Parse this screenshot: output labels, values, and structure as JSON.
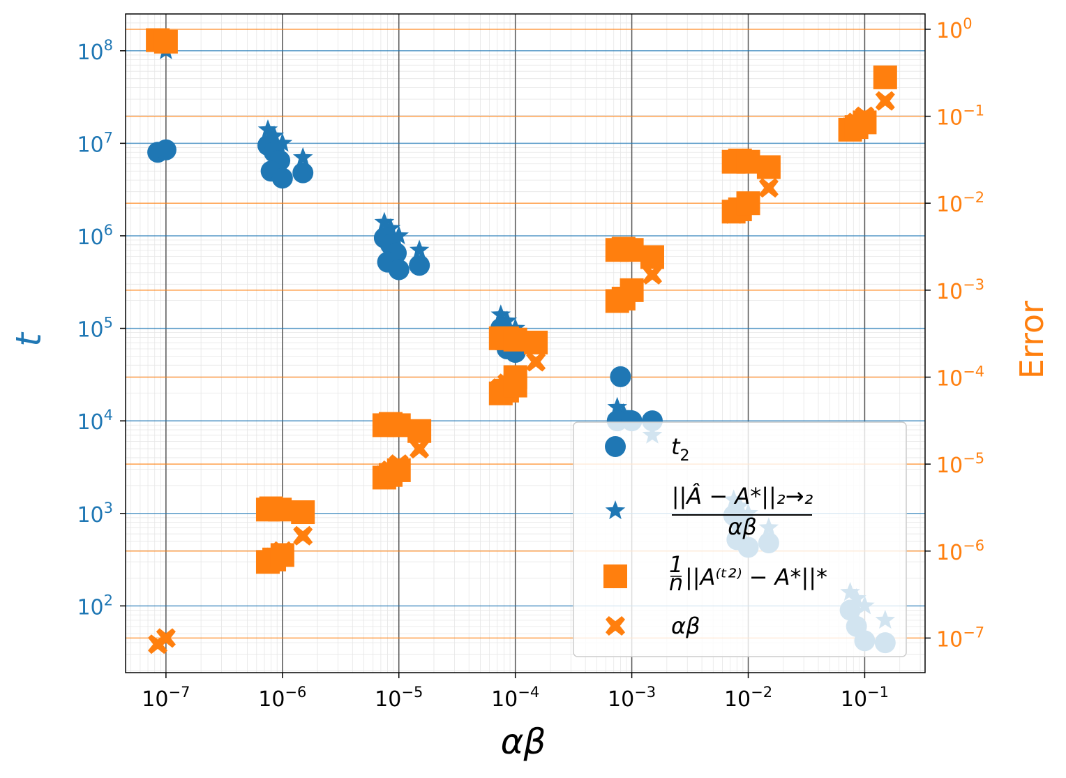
{
  "chart_data": {
    "type": "scatter",
    "x_scale": "log",
    "y_scale": "log",
    "y2_scale": "log",
    "xlabel": "αβ",
    "ylabel": "t",
    "y2label": "Error",
    "xlim": [
      4.5e-08,
      0.33
    ],
    "ylim": [
      19,
      250000000.0
    ],
    "y2lim": [
      4e-08,
      1.5
    ],
    "x_ticks": [
      {
        "value": 1e-07,
        "base": "10",
        "exp": "−7"
      },
      {
        "value": 1e-06,
        "base": "10",
        "exp": "−6"
      },
      {
        "value": 1e-05,
        "base": "10",
        "exp": "−5"
      },
      {
        "value": 0.0001,
        "base": "10",
        "exp": "−4"
      },
      {
        "value": 0.001,
        "base": "10",
        "exp": "−3"
      },
      {
        "value": 0.01,
        "base": "10",
        "exp": "−2"
      },
      {
        "value": 0.1,
        "base": "10",
        "exp": "−1"
      }
    ],
    "y_ticks": [
      {
        "value": 100,
        "base": "10",
        "exp": "2"
      },
      {
        "value": 1000,
        "base": "10",
        "exp": "3"
      },
      {
        "value": 10000,
        "base": "10",
        "exp": "4"
      },
      {
        "value": 100000,
        "base": "10",
        "exp": "5"
      },
      {
        "value": 1000000,
        "base": "10",
        "exp": "6"
      },
      {
        "value": 10000000,
        "base": "10",
        "exp": "7"
      },
      {
        "value": 100000000,
        "base": "10",
        "exp": "8"
      }
    ],
    "y2_ticks": [
      {
        "value": 1e-07,
        "base": "10",
        "exp": "−7"
      },
      {
        "value": 1e-06,
        "base": "10",
        "exp": "−6"
      },
      {
        "value": 1e-05,
        "base": "10",
        "exp": "−5"
      },
      {
        "value": 0.0001,
        "base": "10",
        "exp": "−4"
      },
      {
        "value": 0.001,
        "base": "10",
        "exp": "−3"
      },
      {
        "value": 0.01,
        "base": "10",
        "exp": "−2"
      },
      {
        "value": 0.1,
        "base": "10",
        "exp": "−1"
      },
      {
        "value": 1,
        "base": "10",
        "exp": "0"
      }
    ],
    "grid": true,
    "legend_position": "lower-right",
    "colors": {
      "blue": "#1f77b4",
      "orange": "#ff7f0e",
      "grid_dark": "#555555"
    },
    "series": [
      {
        "name": "t₂",
        "marker": "circle",
        "axis": "left",
        "color": "#1f77b4",
        "points": [
          [
            8.5e-08,
            8000000.0
          ],
          [
            1e-07,
            8500000.0
          ],
          [
            7.5e-07,
            9500000.0
          ],
          [
            8.5e-07,
            8000000.0
          ],
          [
            9.5e-07,
            6500000.0
          ],
          [
            8e-07,
            5000000.0
          ],
          [
            1e-06,
            4200000.0
          ],
          [
            1.5e-06,
            4800000.0
          ],
          [
            7.5e-06,
            950000.0
          ],
          [
            8.5e-06,
            800000.0
          ],
          [
            9.5e-06,
            650000.0
          ],
          [
            8e-06,
            520000.0
          ],
          [
            1e-05,
            430000.0
          ],
          [
            1.5e-05,
            480000.0
          ],
          [
            7.5e-05,
            100000.0
          ],
          [
            8.5e-05,
            60000.0
          ],
          [
            0.0001,
            55000.0
          ],
          [
            0.00015,
            70000.0
          ],
          [
            0.0008,
            30000.0
          ],
          [
            0.00075,
            10000.0
          ],
          [
            0.001,
            10000.0
          ],
          [
            0.0015,
            10000.0
          ],
          [
            0.0075,
            950
          ],
          [
            0.0085,
            800
          ],
          [
            0.008,
            520
          ],
          [
            0.01,
            430
          ],
          [
            0.015,
            480
          ],
          [
            0.075,
            90
          ],
          [
            0.085,
            60
          ],
          [
            0.1,
            42
          ],
          [
            0.15,
            40
          ]
        ]
      },
      {
        "name": "||Â − A*||₂→₂ / αβ",
        "marker": "star",
        "axis": "left",
        "color": "#1f77b4",
        "points": [
          [
            1e-07,
            100000000.0
          ],
          [
            7.5e-07,
            14000000.0
          ],
          [
            8.5e-07,
            12000000.0
          ],
          [
            1e-06,
            10000000.0
          ],
          [
            1.5e-06,
            7000000.0
          ],
          [
            7.5e-06,
            1400000.0
          ],
          [
            8.5e-06,
            1200000.0
          ],
          [
            1e-05,
            1000000.0
          ],
          [
            1.5e-05,
            700000.0
          ],
          [
            7.5e-05,
            140000.0
          ],
          [
            8.5e-05,
            120000.0
          ],
          [
            0.0001,
            100000.0
          ],
          [
            0.00015,
            70000.0
          ],
          [
            0.00075,
            14000.0
          ],
          [
            0.00085,
            12000.0
          ],
          [
            0.001,
            10000.0
          ],
          [
            0.0015,
            7000.0
          ],
          [
            0.0075,
            1400
          ],
          [
            0.0085,
            1200
          ],
          [
            0.01,
            1000
          ],
          [
            0.015,
            700
          ],
          [
            0.075,
            140
          ],
          [
            0.085,
            120
          ],
          [
            0.1,
            100
          ],
          [
            0.15,
            70
          ]
        ]
      },
      {
        "name": "(1/n) ||A^(t₂) − A*||*",
        "marker": "square",
        "axis": "right",
        "color": "#ff7f0e",
        "points": [
          [
            8.5e-08,
            0.75
          ],
          [
            1e-07,
            0.72
          ],
          [
            7.5e-07,
            3e-06
          ],
          [
            8e-07,
            3.1e-06
          ],
          [
            9.5e-07,
            3e-06
          ],
          [
            1.5e-06,
            2.8e-06
          ],
          [
            7.5e-07,
            7.5e-07
          ],
          [
            8.5e-07,
            8e-07
          ],
          [
            1e-06,
            9e-07
          ],
          [
            7.5e-06,
            2.8e-05
          ],
          [
            8.5e-06,
            2.9e-05
          ],
          [
            1e-05,
            2.8e-05
          ],
          [
            1.5e-05,
            2.4e-05
          ],
          [
            7.5e-06,
            7e-06
          ],
          [
            8.5e-06,
            7.5e-06
          ],
          [
            1e-05,
            8.5e-06
          ],
          [
            7.5e-05,
            0.00028
          ],
          [
            8.5e-05,
            0.00028
          ],
          [
            0.0001,
            0.00027
          ],
          [
            0.00015,
            0.00025
          ],
          [
            7.5e-05,
            6.5e-05
          ],
          [
            8.5e-05,
            7e-05
          ],
          [
            0.0001,
            8e-05
          ],
          [
            0.0001,
            0.0001
          ],
          [
            0.00075,
            0.0029
          ],
          [
            0.00085,
            0.003
          ],
          [
            0.001,
            0.0029
          ],
          [
            0.0015,
            0.0024
          ],
          [
            0.00075,
            0.00075
          ],
          [
            0.00085,
            0.0008
          ],
          [
            0.001,
            0.001
          ],
          [
            0.0075,
            0.03
          ],
          [
            0.0085,
            0.031
          ],
          [
            0.01,
            0.03
          ],
          [
            0.015,
            0.026
          ],
          [
            0.0075,
            0.008
          ],
          [
            0.0085,
            0.0085
          ],
          [
            0.01,
            0.01
          ],
          [
            0.075,
            0.07
          ],
          [
            0.085,
            0.075
          ],
          [
            0.1,
            0.085
          ],
          [
            0.15,
            0.28
          ]
        ]
      },
      {
        "name": "αβ",
        "marker": "x",
        "axis": "right",
        "color": "#ff7f0e",
        "points": [
          [
            8.5e-08,
            8.5e-08
          ],
          [
            1e-07,
            1e-07
          ],
          [
            7.5e-07,
            7.5e-07
          ],
          [
            8.5e-07,
            8.5e-07
          ],
          [
            1e-06,
            1e-06
          ],
          [
            1.5e-06,
            1.5e-06
          ],
          [
            7.5e-06,
            7.5e-06
          ],
          [
            8.5e-06,
            8.5e-06
          ],
          [
            1e-05,
            1e-05
          ],
          [
            1.5e-05,
            1.5e-05
          ],
          [
            7.5e-05,
            7.5e-05
          ],
          [
            8.5e-05,
            8.5e-05
          ],
          [
            0.0001,
            0.0001
          ],
          [
            0.00015,
            0.00015
          ],
          [
            0.00075,
            0.00075
          ],
          [
            0.00085,
            0.00085
          ],
          [
            0.001,
            0.001
          ],
          [
            0.0015,
            0.0015
          ],
          [
            0.0075,
            0.0075
          ],
          [
            0.0085,
            0.0085
          ],
          [
            0.01,
            0.01
          ],
          [
            0.015,
            0.015
          ],
          [
            0.075,
            0.075
          ],
          [
            0.085,
            0.085
          ],
          [
            0.1,
            0.1
          ],
          [
            0.15,
            0.15
          ]
        ]
      }
    ]
  }
}
